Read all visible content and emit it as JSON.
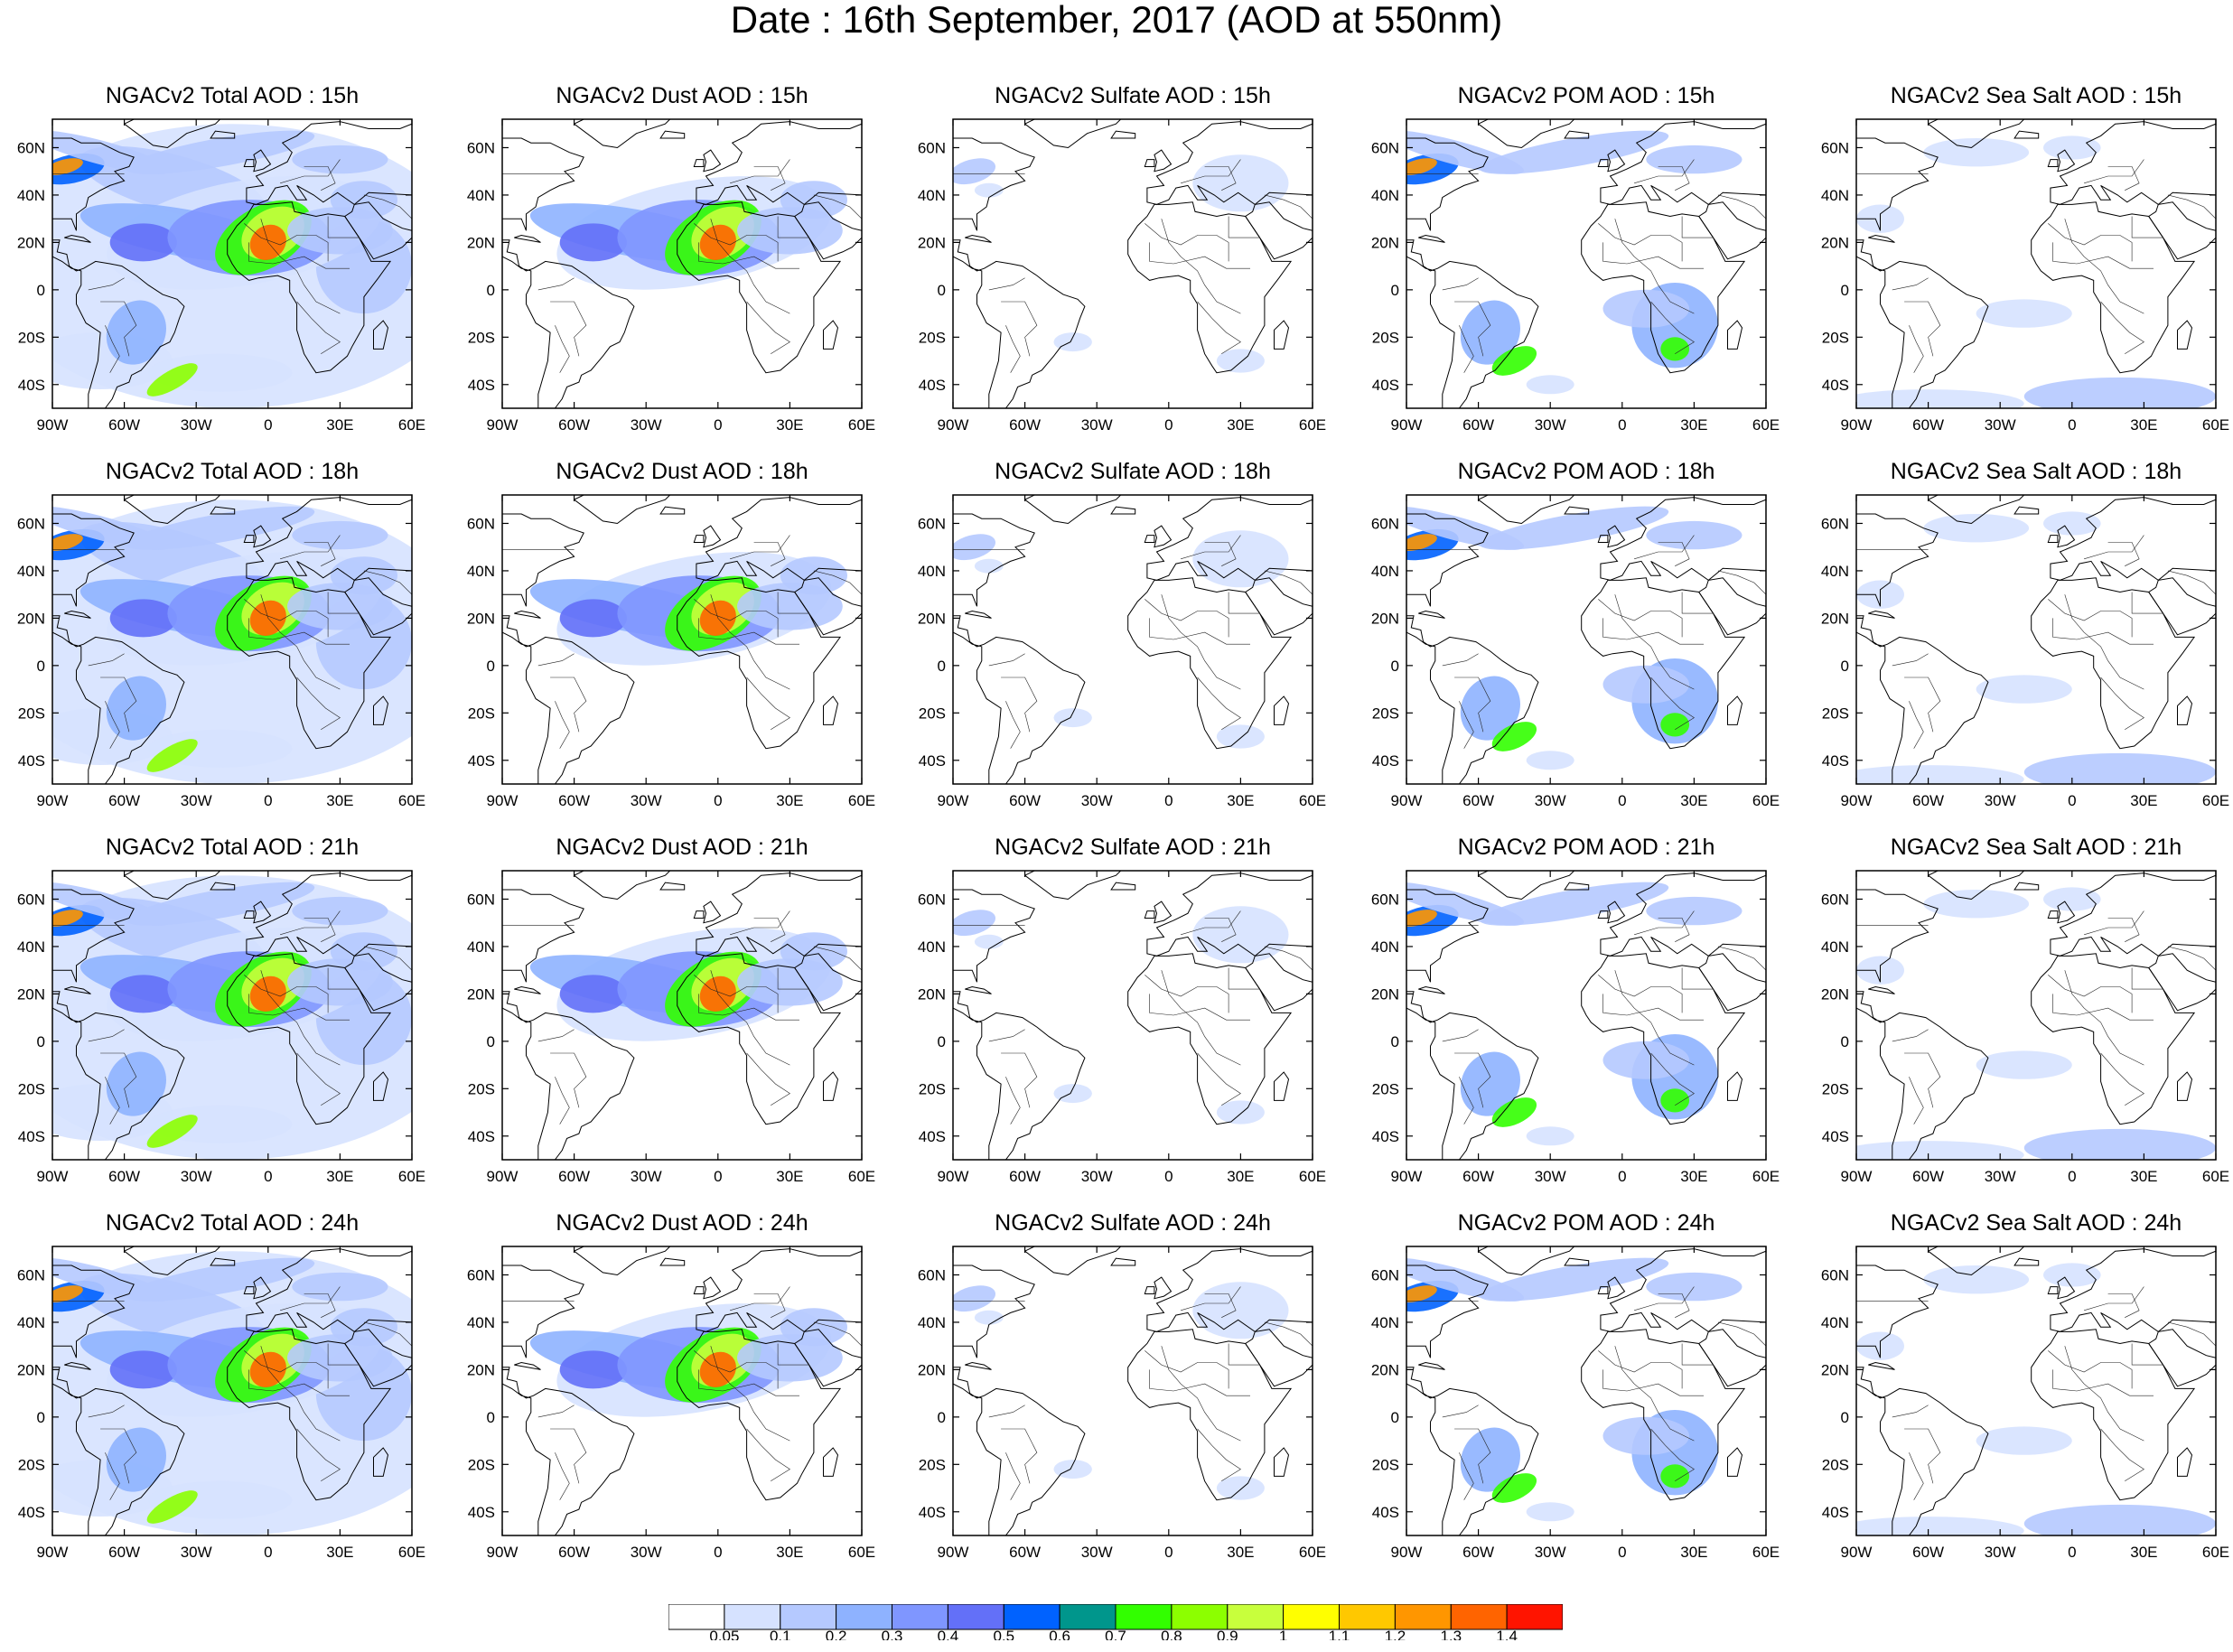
{
  "title": "Date : 16th September, 2017 (AOD at 550nm)",
  "map_grid": {
    "lon_ticks": [
      "90W",
      "60W",
      "30W",
      "0",
      "30E",
      "60E"
    ],
    "lon_values": [
      -90,
      -60,
      -30,
      0,
      30,
      60
    ],
    "lat_ticks": [
      "60N",
      "40N",
      "20N",
      "0",
      "20S",
      "40S"
    ],
    "lat_values": [
      60,
      40,
      20,
      0,
      -20,
      -40
    ],
    "lon_range": [
      -90,
      60
    ],
    "lat_range": [
      -50,
      72
    ]
  },
  "panels": [
    {
      "title": "NGACv2 Total AOD : 15h",
      "species": "total",
      "hour": 15
    },
    {
      "title": "NGACv2 Dust AOD : 15h",
      "species": "dust",
      "hour": 15
    },
    {
      "title": "NGACv2 Sulfate AOD : 15h",
      "species": "sulfate",
      "hour": 15
    },
    {
      "title": "NGACv2 POM AOD : 15h",
      "species": "pom",
      "hour": 15
    },
    {
      "title": "NGACv2 Sea Salt AOD : 15h",
      "species": "seasalt",
      "hour": 15
    },
    {
      "title": "NGACv2 Total AOD : 18h",
      "species": "total",
      "hour": 18
    },
    {
      "title": "NGACv2 Dust AOD : 18h",
      "species": "dust",
      "hour": 18
    },
    {
      "title": "NGACv2 Sulfate AOD : 18h",
      "species": "sulfate",
      "hour": 18
    },
    {
      "title": "NGACv2 POM AOD : 18h",
      "species": "pom",
      "hour": 18
    },
    {
      "title": "NGACv2 Sea Salt AOD : 18h",
      "species": "seasalt",
      "hour": 18
    },
    {
      "title": "NGACv2 Total AOD : 21h",
      "species": "total",
      "hour": 21
    },
    {
      "title": "NGACv2 Dust AOD : 21h",
      "species": "dust",
      "hour": 21
    },
    {
      "title": "NGACv2 Sulfate AOD : 21h",
      "species": "sulfate",
      "hour": 21
    },
    {
      "title": "NGACv2 POM AOD : 21h",
      "species": "pom",
      "hour": 21
    },
    {
      "title": "NGACv2 Sea Salt AOD : 21h",
      "species": "seasalt",
      "hour": 21
    },
    {
      "title": "NGACv2 Total AOD : 24h",
      "species": "total",
      "hour": 24
    },
    {
      "title": "NGACv2 Dust AOD : 24h",
      "species": "dust",
      "hour": 24
    },
    {
      "title": "NGACv2 Sulfate AOD : 24h",
      "species": "sulfate",
      "hour": 24
    },
    {
      "title": "NGACv2 POM AOD : 24h",
      "species": "pom",
      "hour": 24
    },
    {
      "title": "NGACv2 Sea Salt  AOD : 24h",
      "species": "seasalt",
      "hour": 24
    }
  ],
  "colorbar": {
    "labels": [
      "0.05",
      "0.1",
      "0.2",
      "0.3",
      "0.4",
      "0.5",
      "0.6",
      "0.7",
      "0.8",
      "0.9",
      "1",
      "1.1",
      "1.2",
      "1.3",
      "1.4"
    ],
    "colors": [
      "#ffffff",
      "#d6e2ff",
      "#b5c9ff",
      "#8eb2ff",
      "#7f96ff",
      "#6370f8",
      "#0062ff",
      "#00968c",
      "#32ff00",
      "#8cff00",
      "#c8ff3c",
      "#ffff00",
      "#ffc800",
      "#ff9600",
      "#ff6400",
      "#ff1400"
    ]
  }
}
